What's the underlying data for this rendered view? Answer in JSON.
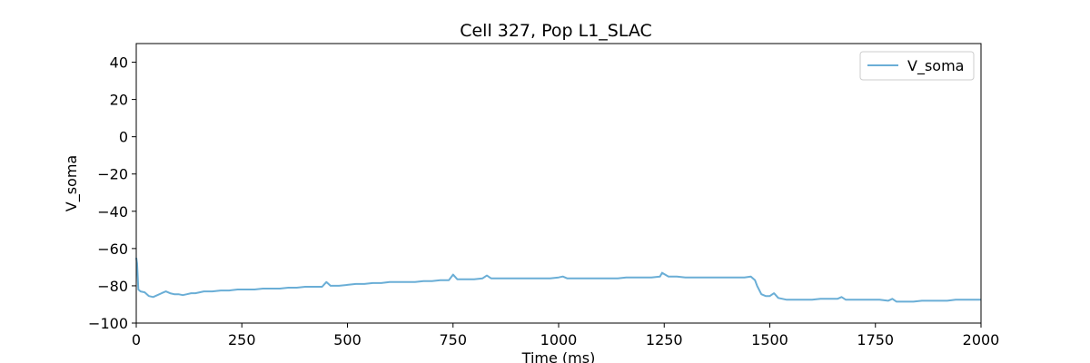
{
  "chart_data": {
    "type": "line",
    "title": "Cell 327, Pop L1_SLAC",
    "xlabel": "Time (ms)",
    "ylabel": "V_soma",
    "xlim": [
      0,
      2000
    ],
    "ylim": [
      -100,
      50
    ],
    "xticks": [
      0,
      250,
      500,
      750,
      1000,
      1250,
      1500,
      1750,
      2000
    ],
    "yticks": [
      -100,
      -80,
      -60,
      -40,
      -20,
      0,
      20,
      40
    ],
    "grid": false,
    "legend": "top-right",
    "series": [
      {
        "name": "V_soma",
        "color": "#6aaed6",
        "x": [
          0,
          2,
          5,
          10,
          20,
          30,
          40,
          50,
          60,
          70,
          80,
          90,
          100,
          110,
          120,
          130,
          140,
          150,
          160,
          180,
          200,
          220,
          240,
          260,
          280,
          300,
          320,
          340,
          360,
          380,
          400,
          420,
          440,
          450,
          460,
          480,
          500,
          520,
          540,
          560,
          580,
          600,
          620,
          640,
          660,
          680,
          700,
          720,
          740,
          750,
          760,
          780,
          800,
          820,
          830,
          840,
          860,
          880,
          900,
          920,
          940,
          960,
          980,
          1000,
          1010,
          1020,
          1040,
          1060,
          1080,
          1100,
          1120,
          1140,
          1160,
          1180,
          1200,
          1220,
          1240,
          1245,
          1260,
          1280,
          1300,
          1320,
          1340,
          1360,
          1380,
          1400,
          1420,
          1440,
          1455,
          1465,
          1470,
          1480,
          1490,
          1500,
          1510,
          1520,
          1530,
          1540,
          1560,
          1580,
          1600,
          1620,
          1640,
          1660,
          1670,
          1680,
          1700,
          1720,
          1740,
          1760,
          1780,
          1790,
          1800,
          1820,
          1840,
          1860,
          1880,
          1900,
          1920,
          1940,
          1960,
          1980,
          2000
        ],
        "y": [
          -65,
          -68,
          -82,
          -83,
          -83.5,
          -85.5,
          -86,
          -85,
          -84,
          -83,
          -84,
          -84.5,
          -84.5,
          -85,
          -84.5,
          -84,
          -84,
          -83.5,
          -83,
          -83,
          -82.5,
          -82.5,
          -82,
          -82,
          -82,
          -81.5,
          -81.5,
          -81.5,
          -81,
          -81,
          -80.5,
          -80.5,
          -80.5,
          -78,
          -80,
          -80,
          -79.5,
          -79,
          -79,
          -78.5,
          -78.5,
          -78,
          -78,
          -78,
          -78,
          -77.5,
          -77.5,
          -77,
          -77,
          -74,
          -76.5,
          -76.5,
          -76.5,
          -76,
          -74.5,
          -76,
          -76,
          -76,
          -76,
          -76,
          -76,
          -76,
          -76,
          -75.5,
          -75,
          -76,
          -76,
          -76,
          -76,
          -76,
          -76,
          -76,
          -75.5,
          -75.5,
          -75.5,
          -75.5,
          -75,
          -73,
          -75,
          -75,
          -75.5,
          -75.5,
          -75.5,
          -75.5,
          -75.5,
          -75.5,
          -75.5,
          -75.5,
          -75,
          -77,
          -80,
          -84.5,
          -85.5,
          -85.5,
          -84,
          -86.5,
          -87,
          -87.5,
          -87.5,
          -87.5,
          -87.5,
          -87,
          -87,
          -87,
          -86,
          -87.5,
          -87.5,
          -87.5,
          -87.5,
          -87.5,
          -88,
          -87,
          -88.5,
          -88.5,
          -88.5,
          -88,
          -88,
          -88,
          -88,
          -87.5,
          -87.5,
          -87.5,
          -87.5
        ]
      }
    ]
  }
}
